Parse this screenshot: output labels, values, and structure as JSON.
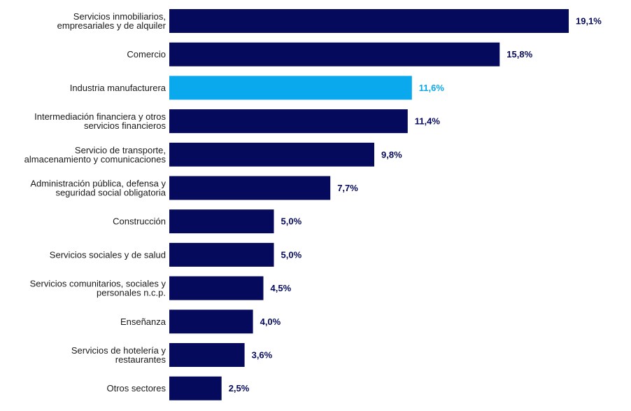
{
  "chart_data": {
    "type": "bar",
    "orientation": "horizontal",
    "categories": [
      [
        "Servicios inmobiliarios,",
        "empresariales y de alquiler"
      ],
      [
        "Comercio"
      ],
      [
        "Industria manufacturera"
      ],
      [
        "Intermediación financiera y otros",
        "servicios financieros"
      ],
      [
        "Servicio de transporte,",
        "almacenamiento y comunicaciones"
      ],
      [
        "Administración pública, defensa y",
        "seguridad social obligatoria"
      ],
      [
        "Construcción"
      ],
      [
        "Servicios sociales y de salud"
      ],
      [
        "Servicios comunitarios, sociales y",
        "personales n.c.p."
      ],
      [
        "Enseñanza"
      ],
      [
        "Servicios de hotelería y",
        "restaurantes"
      ],
      [
        "Otros sectores"
      ]
    ],
    "values": [
      19.1,
      15.8,
      11.6,
      11.4,
      9.8,
      7.7,
      5.0,
      5.0,
      4.5,
      4.0,
      3.6,
      2.5
    ],
    "value_labels": [
      "19,1%",
      "15,8%",
      "11,6%",
      "11,4%",
      "9,8%",
      "7,7%",
      "5,0%",
      "5,0%",
      "4,5%",
      "4,0%",
      "3,6%",
      "2,5%"
    ],
    "highlight_index": 2,
    "colors": {
      "bar": "#050a5c",
      "highlight": "#0aa8ec",
      "label": "#1a1a1a",
      "value_label": "#050a5c"
    },
    "xlim": [
      0,
      19.1
    ],
    "grid": false,
    "legend": "none",
    "title": "",
    "xlabel": "",
    "ylabel": ""
  }
}
